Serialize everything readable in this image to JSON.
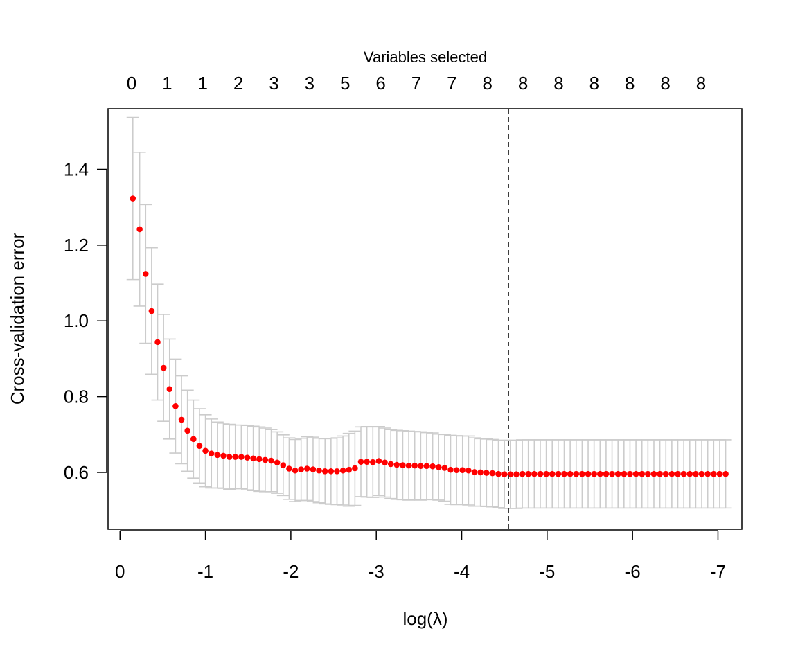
{
  "chart_data": {
    "type": "scatter",
    "title": "",
    "xlabel": "log(λ)",
    "ylabel": "Cross-validation error",
    "top_axis_title": "Variables selected",
    "top_axis_labels": [
      "0",
      "1",
      "1",
      "2",
      "3",
      "3",
      "5",
      "6",
      "7",
      "7",
      "8",
      "8",
      "8",
      "8",
      "8",
      "8",
      "8"
    ],
    "x_ticks": [
      0,
      -1,
      -2,
      -3,
      -4,
      -5,
      -6,
      -7
    ],
    "x_tick_labels": [
      "0",
      "-1",
      "-2",
      "-3",
      "-4",
      "-5",
      "-6",
      "-7"
    ],
    "y_ticks": [
      0.6,
      0.8,
      1.0,
      1.2,
      1.4
    ],
    "y_tick_labels": [
      "0.6",
      "0.8",
      "1.0",
      "1.2",
      "1.4"
    ],
    "xlim": [
      0.14,
      -7.28
    ],
    "ylim": [
      0.45,
      1.56
    ],
    "reversed_x": true,
    "vline": {
      "x": -4.55,
      "style": "dashed"
    },
    "point_color": "#ff0000",
    "errorbar_color": "#cccccc",
    "series": [
      {
        "x": [
          -0.15,
          -0.23,
          -0.3,
          -0.37,
          -0.44,
          -0.51,
          -0.58,
          -0.65,
          -0.72,
          -0.79,
          -0.86,
          -0.93,
          -1.0,
          -1.07,
          -1.14,
          -1.21,
          -1.28,
          -1.35,
          -1.42,
          -1.49,
          -1.56,
          -1.63,
          -1.7,
          -1.77,
          -1.84,
          -1.91,
          -1.98,
          -2.05,
          -2.12,
          -2.19,
          -2.26,
          -2.33,
          -2.4,
          -2.47,
          -2.54,
          -2.61,
          -2.68,
          -2.75,
          -2.82,
          -2.89,
          -2.96,
          -3.03,
          -3.1,
          -3.17,
          -3.24,
          -3.31,
          -3.38,
          -3.45,
          -3.52,
          -3.59,
          -3.66,
          -3.73,
          -3.8,
          -3.87,
          -3.94,
          -4.01,
          -4.08,
          -4.15,
          -4.22,
          -4.29,
          -4.36,
          -4.43,
          -4.5,
          -4.57,
          -4.64,
          -4.71,
          -4.78,
          -4.85,
          -4.92,
          -4.99,
          -5.06,
          -5.13,
          -5.2,
          -5.27,
          -5.34,
          -5.41,
          -5.48,
          -5.55,
          -5.62,
          -5.69,
          -5.76,
          -5.83,
          -5.9,
          -5.97,
          -6.04,
          -6.11,
          -6.18,
          -6.25,
          -6.32,
          -6.39,
          -6.46,
          -6.53,
          -6.6,
          -6.67,
          -6.74,
          -6.81,
          -6.88,
          -6.95,
          -7.02,
          -7.09
        ],
        "y": [
          1.323,
          1.242,
          1.124,
          1.026,
          0.944,
          0.876,
          0.82,
          0.775,
          0.739,
          0.71,
          0.688,
          0.67,
          0.657,
          0.65,
          0.646,
          0.644,
          0.641,
          0.641,
          0.641,
          0.639,
          0.637,
          0.635,
          0.633,
          0.631,
          0.626,
          0.619,
          0.61,
          0.605,
          0.608,
          0.61,
          0.608,
          0.605,
          0.603,
          0.603,
          0.603,
          0.605,
          0.607,
          0.611,
          0.628,
          0.628,
          0.627,
          0.63,
          0.626,
          0.622,
          0.62,
          0.619,
          0.618,
          0.618,
          0.617,
          0.617,
          0.616,
          0.614,
          0.612,
          0.607,
          0.606,
          0.606,
          0.605,
          0.601,
          0.6,
          0.599,
          0.598,
          0.596,
          0.595,
          0.595,
          0.595,
          0.596,
          0.596,
          0.596,
          0.596,
          0.596,
          0.596,
          0.596,
          0.596,
          0.596,
          0.596,
          0.596,
          0.596,
          0.596,
          0.596,
          0.596,
          0.596,
          0.596,
          0.596,
          0.596,
          0.596,
          0.596,
          0.596,
          0.596,
          0.596,
          0.596,
          0.596,
          0.596,
          0.596,
          0.596,
          0.596,
          0.596,
          0.596,
          0.596,
          0.596,
          0.596
        ],
        "upper": [
          1.537,
          1.445,
          1.307,
          1.193,
          1.097,
          1.017,
          0.952,
          0.899,
          0.855,
          0.817,
          0.791,
          0.768,
          0.752,
          0.741,
          0.733,
          0.73,
          0.727,
          0.725,
          0.725,
          0.724,
          0.722,
          0.72,
          0.717,
          0.713,
          0.707,
          0.699,
          0.691,
          0.687,
          0.69,
          0.694,
          0.693,
          0.69,
          0.689,
          0.69,
          0.691,
          0.696,
          0.703,
          0.709,
          0.72,
          0.721,
          0.72,
          0.721,
          0.717,
          0.713,
          0.711,
          0.71,
          0.709,
          0.708,
          0.707,
          0.705,
          0.704,
          0.701,
          0.7,
          0.698,
          0.697,
          0.696,
          0.696,
          0.691,
          0.689,
          0.688,
          0.687,
          0.685,
          0.685,
          0.685,
          0.685,
          0.686,
          0.686,
          0.686,
          0.686,
          0.686,
          0.686,
          0.686,
          0.686,
          0.686,
          0.686,
          0.686,
          0.686,
          0.686,
          0.686,
          0.686,
          0.686,
          0.686,
          0.686,
          0.686,
          0.686,
          0.686,
          0.686,
          0.686,
          0.686,
          0.686,
          0.686,
          0.686,
          0.686,
          0.686,
          0.686,
          0.686,
          0.686,
          0.686,
          0.686,
          0.686
        ],
        "lower": [
          1.109,
          1.039,
          0.941,
          0.859,
          0.791,
          0.735,
          0.688,
          0.651,
          0.623,
          0.603,
          0.585,
          0.572,
          0.562,
          0.559,
          0.559,
          0.558,
          0.555,
          0.557,
          0.557,
          0.554,
          0.552,
          0.55,
          0.549,
          0.549,
          0.545,
          0.539,
          0.529,
          0.523,
          0.526,
          0.526,
          0.523,
          0.52,
          0.517,
          0.516,
          0.515,
          0.514,
          0.511,
          0.513,
          0.536,
          0.535,
          0.534,
          0.539,
          0.535,
          0.531,
          0.529,
          0.528,
          0.527,
          0.528,
          0.527,
          0.529,
          0.528,
          0.527,
          0.524,
          0.516,
          0.515,
          0.516,
          0.514,
          0.511,
          0.511,
          0.51,
          0.509,
          0.507,
          0.505,
          0.505,
          0.505,
          0.506,
          0.506,
          0.506,
          0.506,
          0.506,
          0.506,
          0.506,
          0.506,
          0.506,
          0.506,
          0.506,
          0.506,
          0.506,
          0.506,
          0.506,
          0.506,
          0.506,
          0.506,
          0.506,
          0.506,
          0.506,
          0.506,
          0.506,
          0.506,
          0.506,
          0.506,
          0.506,
          0.506,
          0.506,
          0.506,
          0.506,
          0.506,
          0.506,
          0.506,
          0.506
        ]
      }
    ],
    "grid": false,
    "legend": "none"
  }
}
